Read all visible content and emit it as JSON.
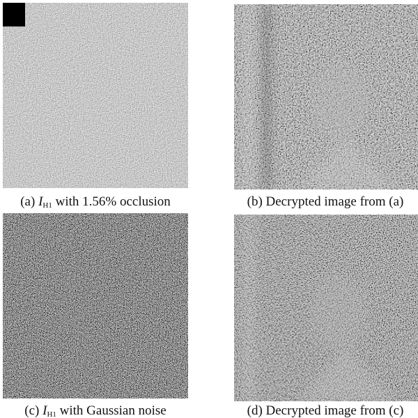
{
  "panels": [
    {
      "label": "(a)",
      "symbol": "I",
      "subscript": "H1",
      "text": "with 1.56% occlusion"
    },
    {
      "label": "(b)",
      "text": "Decrypted image from (a)"
    },
    {
      "label": "(c)",
      "symbol": "I",
      "subscript": "H1",
      "text": "with Gaussian noise"
    },
    {
      "label": "(d)",
      "text": "Decrypted image from (c)"
    }
  ]
}
